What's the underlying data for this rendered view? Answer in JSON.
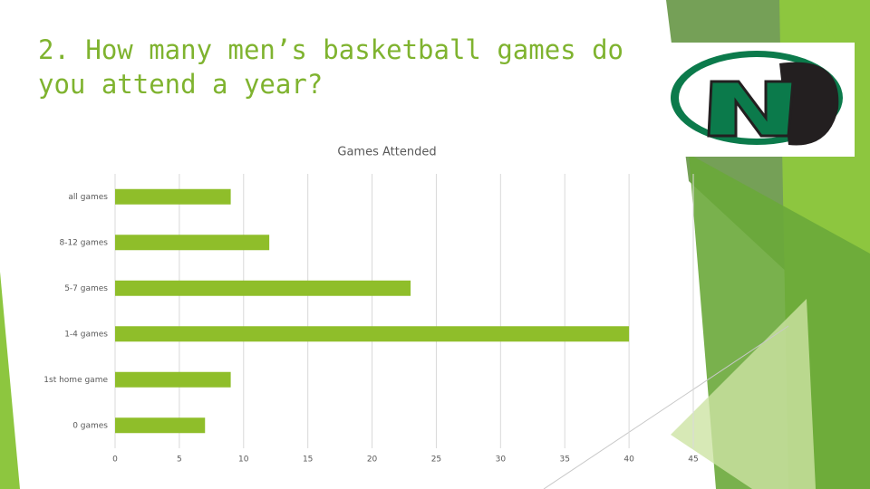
{
  "slide": {
    "title": "2. How many men’s basketball games do you attend a year?"
  },
  "chart_data": {
    "type": "bar",
    "orientation": "horizontal",
    "title": "Games Attended",
    "categories": [
      "all games",
      "8-12 games",
      "5-7 games",
      "1-4 games",
      "1st home game",
      "0 games"
    ],
    "values": [
      9,
      12,
      23,
      40,
      9,
      7
    ],
    "color": "#8fbe2a",
    "xlim": [
      0,
      45
    ],
    "xticks": [
      0,
      5,
      10,
      15,
      20,
      25,
      30,
      35,
      40,
      45
    ],
    "grid": true
  }
}
